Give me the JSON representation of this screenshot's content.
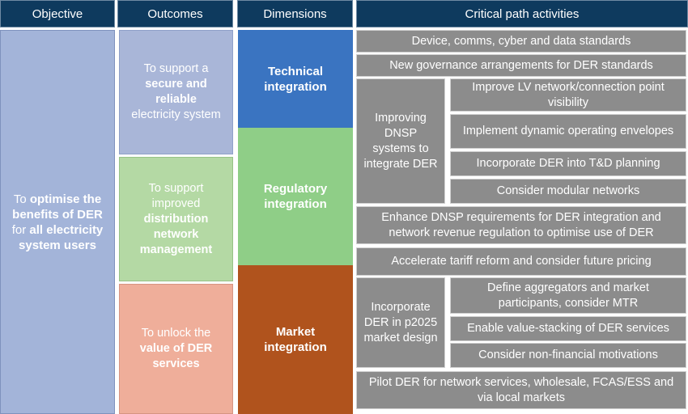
{
  "headers": {
    "objective": "Objective",
    "outcomes": "Outcomes",
    "dimensions": "Dimensions",
    "activities": "Critical path activities"
  },
  "objective": {
    "t1": "To ",
    "t2": "optimise the benefits of DER",
    "t3": " for ",
    "t4": "all electricity system users"
  },
  "outcomes": [
    {
      "pre": "To support a",
      "bold": "secure and reliable",
      "post": "electricity system"
    },
    {
      "pre": "To support improved",
      "bold": "distribution network management",
      "post": ""
    },
    {
      "pre": "To unlock the",
      "bold": "value of DER services",
      "post": ""
    }
  ],
  "dimensions": [
    {
      "line1": "Technical",
      "line2": "integration",
      "color": "#3a74c1"
    },
    {
      "line1": "Regulatory",
      "line2": "integration",
      "color": "#8fce87"
    },
    {
      "line1": "Market",
      "line2": "integration",
      "color": "#b0531d"
    }
  ],
  "activities": {
    "a1": "Device, comms, cyber and data standards",
    "a2": "New governance arrangements for DER standards",
    "group1": "Improving DNSP systems to integrate DER",
    "g1_items": [
      "Improve LV network/connection point visibility",
      "Implement dynamic operating envelopes",
      "Incorporate DER into T&D planning",
      "Consider modular networks"
    ],
    "a3": "Enhance DNSP requirements for DER integration and network revenue regulation to optimise use of DER",
    "a4": "Accelerate tariff reform and consider future pricing",
    "group2": "Incorporate DER in p2025 market design",
    "g2_items": [
      "Define aggregators and market participants, consider MTR",
      "Enable value-stacking of DER services",
      "Consider non-financial motivations"
    ],
    "a5": "Pilot DER for network services, wholesale, FCAS/ESS and via local markets"
  }
}
